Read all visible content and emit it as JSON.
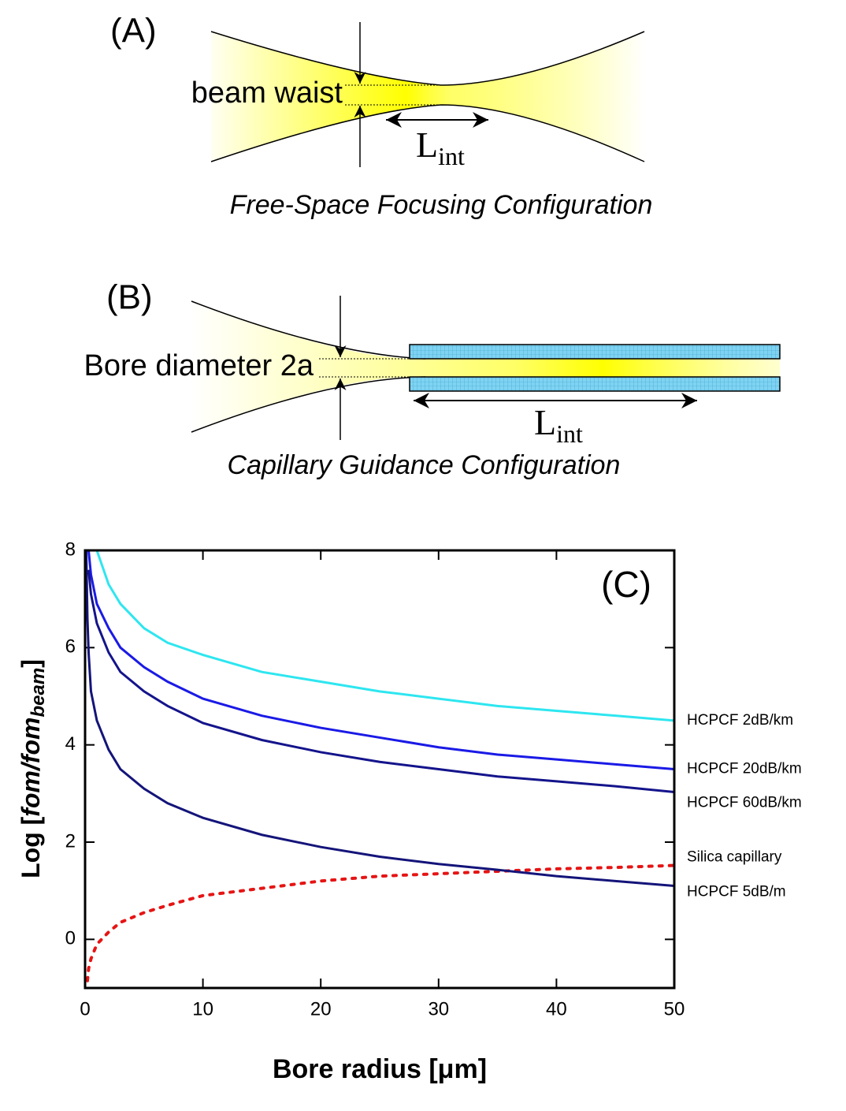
{
  "diagrams": {
    "a": {
      "panel": "(A)",
      "label": "beam waist",
      "length": "L",
      "length_sub": "int",
      "caption": "Free-Space Focusing Configuration"
    },
    "b": {
      "panel": "(B)",
      "label": "Bore diameter 2a",
      "length": "L",
      "length_sub": "int",
      "caption": "Capillary Guidance Configuration"
    }
  },
  "chart_data": {
    "type": "line",
    "annotation": "(C)",
    "x_label": "Bore radius [μm]",
    "y_label": {
      "prefix": "Log [",
      "italic": "fom/fom",
      "sub": "beam",
      "suffix": "]"
    },
    "x": [
      0.1,
      0.2,
      0.3,
      0.5,
      1,
      2,
      3,
      5,
      7,
      10,
      15,
      20,
      25,
      30,
      35,
      40,
      45,
      50
    ],
    "xlim": [
      0,
      50
    ],
    "xticks": [
      0,
      10,
      20,
      30,
      40,
      50
    ],
    "ylim": [
      -1,
      8
    ],
    "yticks": [
      0,
      2,
      4,
      6,
      8
    ],
    "series": [
      {
        "name": "HCPCF 2dB/km",
        "color": "#2ee6f0",
        "dash": false,
        "values": [
          null,
          null,
          null,
          null,
          8,
          7.3,
          6.9,
          6.4,
          6.1,
          5.85,
          5.5,
          5.3,
          5.1,
          4.95,
          4.8,
          4.7,
          4.6,
          4.5
        ]
      },
      {
        "name": "HCPCF 20dB/km",
        "color": "#1a1ae6",
        "dash": false,
        "values": [
          null,
          null,
          8,
          7.5,
          6.9,
          6.4,
          6.0,
          5.6,
          5.3,
          4.95,
          4.6,
          4.35,
          4.15,
          3.95,
          3.8,
          3.7,
          3.6,
          3.5
        ]
      },
      {
        "name": "HCPCF 60dB/km",
        "color": "#14148c",
        "dash": false,
        "values": [
          null,
          null,
          7.6,
          7.1,
          6.5,
          5.9,
          5.5,
          5.1,
          4.8,
          4.45,
          4.1,
          3.85,
          3.65,
          3.5,
          3.35,
          3.25,
          3.15,
          3.03
        ]
      },
      {
        "name": "Silica capillary",
        "color": "#e61414",
        "dash": true,
        "values": [
          null,
          -0.85,
          -0.6,
          -0.4,
          -0.1,
          0.15,
          0.35,
          0.55,
          0.7,
          0.9,
          1.05,
          1.2,
          1.3,
          1.35,
          1.4,
          1.45,
          1.48,
          1.52
        ]
      },
      {
        "name": "HCPCF 5dB/m",
        "color": "#14147a",
        "dash": false,
        "values": [
          8,
          6.6,
          5.9,
          5.1,
          4.5,
          3.9,
          3.5,
          3.1,
          2.8,
          2.5,
          2.15,
          1.9,
          1.7,
          1.55,
          1.43,
          1.3,
          1.2,
          1.1
        ]
      }
    ]
  }
}
